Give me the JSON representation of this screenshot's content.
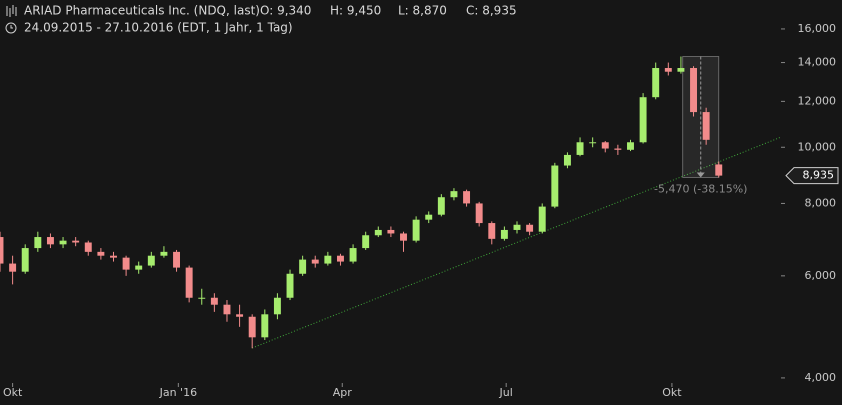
{
  "header": {
    "title": "ARIAD Pharmaceuticals Inc. (NDQ, last)",
    "open": "O: 9,340",
    "high": "H: 9,450",
    "low": "L: 8,870",
    "close": "C: 8,935",
    "range": "24.09.2015 - 27.10.2016 (EDT, 1 Jahr, 1 Tag)"
  },
  "chart_data": {
    "type": "candlestick",
    "log_scale": true,
    "grid": false,
    "up_color": "#a6ec6e",
    "down_color": "#f28b8b",
    "x": [
      "2015-09-24",
      "2015-10-01",
      "2015-10-08",
      "2015-10-15",
      "2015-10-22",
      "2015-10-29",
      "2015-11-05",
      "2015-11-12",
      "2015-11-19",
      "2015-11-26",
      "2015-12-03",
      "2015-12-10",
      "2015-12-17",
      "2015-12-24",
      "2015-12-31",
      "2016-01-07",
      "2016-01-14",
      "2016-01-21",
      "2016-01-28",
      "2016-02-04",
      "2016-02-11",
      "2016-02-18",
      "2016-02-25",
      "2016-03-03",
      "2016-03-10",
      "2016-03-17",
      "2016-03-24",
      "2016-03-31",
      "2016-04-07",
      "2016-04-14",
      "2016-04-21",
      "2016-04-28",
      "2016-05-05",
      "2016-05-12",
      "2016-05-19",
      "2016-05-26",
      "2016-06-02",
      "2016-06-09",
      "2016-06-16",
      "2016-06-23",
      "2016-06-30",
      "2016-07-07",
      "2016-07-14",
      "2016-07-21",
      "2016-07-28",
      "2016-08-04",
      "2016-08-11",
      "2016-08-18",
      "2016-08-25",
      "2016-09-01",
      "2016-09-08",
      "2016-09-15",
      "2016-09-22",
      "2016-09-29",
      "2016-10-06",
      "2016-10-13",
      "2016-10-20",
      "2016-10-27"
    ],
    "open": [
      7000,
      6300,
      6100,
      6700,
      7000,
      6800,
      6900,
      6850,
      6600,
      6500,
      6450,
      6150,
      6250,
      6500,
      6600,
      6200,
      5500,
      5500,
      5350,
      5150,
      5100,
      4700,
      5150,
      5500,
      6050,
      6400,
      6300,
      6500,
      6350,
      6700,
      7050,
      7200,
      7100,
      6900,
      7500,
      7650,
      8200,
      8400,
      8000,
      7400,
      6950,
      7200,
      7350,
      7150,
      7900,
      9300,
      9700,
      10200,
      10200,
      9950,
      9900,
      10200,
      12200,
      13700,
      13500,
      13700,
      11500,
      9340
    ],
    "high": [
      7150,
      6500,
      6800,
      7150,
      7100,
      7000,
      7000,
      6900,
      6700,
      6600,
      6500,
      6350,
      6600,
      6750,
      6650,
      6250,
      5700,
      5600,
      5450,
      5350,
      5150,
      5250,
      5600,
      6150,
      6500,
      6500,
      6600,
      6550,
      6800,
      7150,
      7300,
      7300,
      7150,
      7600,
      7750,
      8300,
      8500,
      8450,
      8050,
      7450,
      7300,
      7450,
      7400,
      8000,
      9400,
      9800,
      10400,
      10400,
      10250,
      10100,
      10300,
      12400,
      14000,
      14000,
      14340,
      13800,
      11700,
      9450
    ],
    "low": [
      6100,
      5800,
      6050,
      6600,
      6700,
      6700,
      6750,
      6500,
      6400,
      6350,
      6000,
      6050,
      6200,
      6450,
      6100,
      5400,
      5350,
      5200,
      5000,
      4900,
      4500,
      4650,
      5050,
      5450,
      6000,
      6200,
      6250,
      6250,
      6300,
      6650,
      7000,
      7000,
      6600,
      6850,
      7400,
      7600,
      8100,
      7900,
      7300,
      6800,
      6900,
      7100,
      7050,
      7100,
      7850,
      9200,
      9650,
      10000,
      9800,
      9700,
      9850,
      10150,
      12100,
      13300,
      13400,
      11300,
      10100,
      8870
    ],
    "close": [
      6300,
      6100,
      6700,
      7000,
      6800,
      6900,
      6850,
      6600,
      6500,
      6450,
      6150,
      6250,
      6500,
      6600,
      6200,
      5500,
      5500,
      5350,
      5150,
      5100,
      4700,
      5150,
      5500,
      6050,
      6400,
      6300,
      6500,
      6350,
      6700,
      7050,
      7200,
      7100,
      6900,
      7500,
      7650,
      8200,
      8400,
      8000,
      7400,
      6950,
      7200,
      7350,
      7150,
      7900,
      9300,
      9700,
      10200,
      10200,
      9950,
      9900,
      10200,
      12200,
      13700,
      13500,
      13700,
      11500,
      10300,
      8935
    ],
    "xlim": [
      "2015-09-24",
      "2016-11-30"
    ],
    "xticks": [
      {
        "value": "2015-10-01",
        "label": "Okt"
      },
      {
        "value": "2016-01-01",
        "label": "Jan '16"
      },
      {
        "value": "2016-04-01",
        "label": "Apr"
      },
      {
        "value": "2016-07-01",
        "label": "Jul"
      },
      {
        "value": "2016-10-01",
        "label": "Okt"
      }
    ],
    "ylim": [
      3920,
      17950
    ],
    "yticks": [
      {
        "value": 4000,
        "label": "4,000"
      },
      {
        "value": 6000,
        "label": "6,000"
      },
      {
        "value": 8000,
        "label": "8,000"
      },
      {
        "value": 10000,
        "label": "10,000"
      },
      {
        "value": 12000,
        "label": "12,000"
      },
      {
        "value": 14000,
        "label": "14,000"
      },
      {
        "value": 16000,
        "label": "16,000"
      }
    ],
    "last_price": {
      "value": 8935,
      "label": "8,935"
    },
    "trendline": {
      "color": "#3fa83a",
      "x": [
        "2016-02-11",
        "2016-11-30"
      ],
      "values": [
        4505,
        10395
      ]
    },
    "measure": {
      "start": "2016-10-07",
      "end": "2016-10-27",
      "high": 14340,
      "low": 8870,
      "label": "-5,470 (-38.15%)"
    }
  }
}
